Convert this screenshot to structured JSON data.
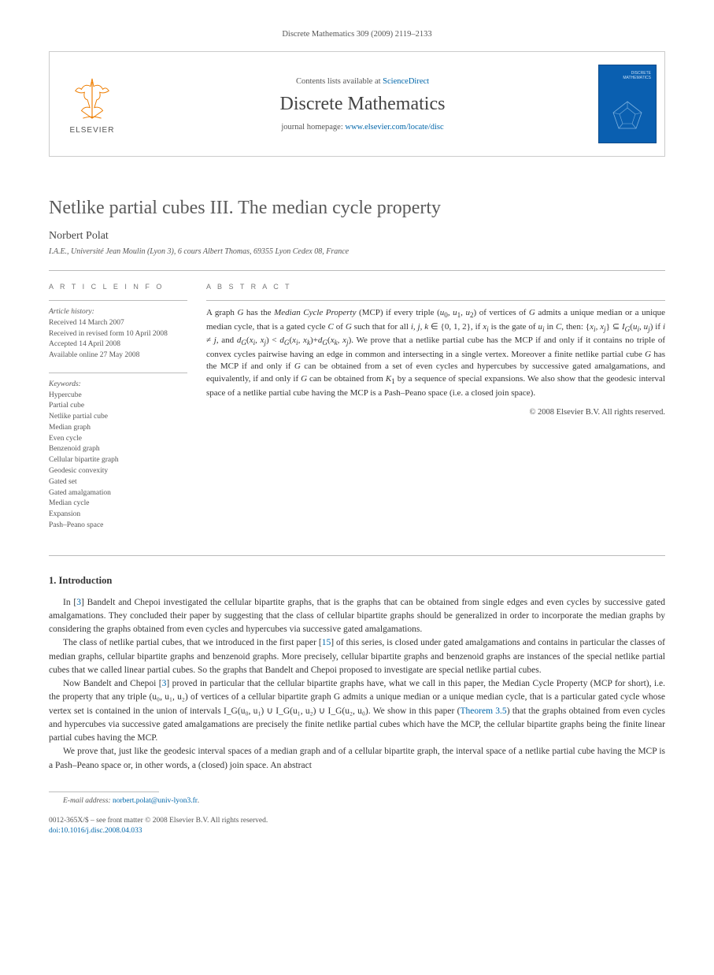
{
  "header_line": "Discrete Mathematics 309 (2009) 2119–2133",
  "banner": {
    "publisher": "ELSEVIER",
    "contents_prefix": "Contents lists available at ",
    "contents_link": "ScienceDirect",
    "journal": "Discrete Mathematics",
    "homepage_prefix": "journal homepage: ",
    "homepage_link": "www.elsevier.com/locate/disc",
    "cover_title_1": "DISCRETE",
    "cover_title_2": "MATHEMATICS",
    "cover_bg": "#0a5fb0",
    "cover_line": "#7fb3e0"
  },
  "title": "Netlike partial cubes III. The median cycle property",
  "author": "Norbert Polat",
  "affiliation": "I.A.E., Université Jean Moulin (Lyon 3), 6 cours Albert Thomas, 69355 Lyon Cedex 08, France",
  "info": {
    "heading": "A R T I C L E   I N F O",
    "history_label": "Article history:",
    "history": [
      "Received 14 March 2007",
      "Received in revised form 10 April 2008",
      "Accepted 14 April 2008",
      "Available online 27 May 2008"
    ],
    "keywords_label": "Keywords:",
    "keywords": [
      "Hypercube",
      "Partial cube",
      "Netlike partial cube",
      "Median graph",
      "Even cycle",
      "Benzenoid graph",
      "Cellular bipartite graph",
      "Geodesic convexity",
      "Gated set",
      "Gated amalgamation",
      "Median cycle",
      "Expansion",
      "Pash–Peano space"
    ]
  },
  "abstract": {
    "heading": "A B S T R A C T",
    "text": "A graph <i>G</i> has the <i>Median Cycle Property</i> (MCP) if every triple (<i>u</i><sub>0</sub>, <i>u</i><sub>1</sub>, <i>u</i><sub>2</sub>) of vertices of <i>G</i> admits a unique median or a unique median cycle, that is a gated cycle <i>C</i> of <i>G</i> such that for all <i>i, j, k</i> ∈ {0, 1, 2}, if <i>x<sub>i</sub></i> is the gate of <i>u<sub>i</sub></i> in <i>C</i>, then: {<i>x<sub>i</sub>, x<sub>j</sub></i>} ⊆ <i>I<sub>G</sub></i>(<i>u<sub>i</sub>, u<sub>j</sub></i>) if <i>i</i> ≠ <i>j</i>, and <i>d<sub>G</sub></i>(<i>x<sub>i</sub>, x<sub>j</sub></i>) &lt; <i>d<sub>G</sub></i>(<i>x<sub>i</sub>, x<sub>k</sub></i>)+<i>d<sub>G</sub></i>(<i>x<sub>k</sub>, x<sub>j</sub></i>). We prove that a netlike partial cube has the MCP if and only if it contains no triple of convex cycles pairwise having an edge in common and intersecting in a single vertex. Moreover a finite netlike partial cube <i>G</i> has the MCP if and only if <i>G</i> can be obtained from a set of even cycles and hypercubes by successive gated amalgamations, and equivalently, if and only if <i>G</i> can be obtained from <i>K</i><sub>1</sub> by a sequence of special expansions. We also show that the geodesic interval space of a netlike partial cube having the MCP is a Pash–Peano space (i.e. a closed join space).",
    "copyright": "© 2008 Elsevier B.V. All rights reserved."
  },
  "section1": {
    "heading": "1. Introduction",
    "p1_a": "In [",
    "p1_ref": "3",
    "p1_b": "] Bandelt and Chepoi investigated the cellular bipartite graphs, that is the graphs that can be obtained from single edges and even cycles by successive gated amalgamations. They concluded their paper by suggesting that the class of cellular bipartite graphs should be generalized in order to incorporate the median graphs by considering the graphs obtained from even cycles and hypercubes via successive gated amalgamations.",
    "p2_a": "The class of netlike partial cubes, that we introduced in the first paper [",
    "p2_ref": "15",
    "p2_b": "] of this series, is closed under gated amalgamations and contains in particular the classes of median graphs, cellular bipartite graphs and benzenoid graphs. More precisely, cellular bipartite graphs and benzenoid graphs are instances of the special netlike partial cubes that we called linear partial cubes. So the graphs that Bandelt and Chepoi proposed to investigate are special netlike partial cubes.",
    "p3_a": "Now Bandelt and Chepoi [",
    "p3_ref": "3",
    "p3_b": "] proved in particular that the cellular bipartite graphs have, what we call in this paper, the Median Cycle Property (MCP for short), i.e. the property that any triple (u₀, u₁, u₂) of vertices of a cellular bipartite graph G admits a unique median or a unique median cycle, that is a particular gated cycle whose vertex set is contained in the union of intervals I_G(u₀, u₁) ∪ I_G(u₁, u₂) ∪ I_G(u₂, u₀). We show in this paper (",
    "p3_thm": "Theorem 3.5",
    "p3_c": ") that the graphs obtained from even cycles and hypercubes via successive gated amalgamations are precisely the finite netlike partial cubes which have the MCP, the cellular bipartite graphs being the finite linear partial cubes having the MCP.",
    "p4": "We prove that, just like the geodesic interval spaces of a median graph and of a cellular bipartite graph, the interval space of a netlike partial cube having the MCP is a Pash–Peano space or, in other words, a (closed) join space. An abstract"
  },
  "footer": {
    "email_label": "E-mail address: ",
    "email": "norbert.polat@univ-lyon3.fr",
    "line1": "0012-365X/$ – see front matter © 2008 Elsevier B.V. All rights reserved.",
    "doi_label": "doi:",
    "doi": "10.1016/j.disc.2008.04.033"
  },
  "colors": {
    "link": "#0066aa",
    "text": "#333333",
    "muted": "#555555",
    "rule": "#bbbbbb",
    "elsevier_orange": "#ee7d00"
  }
}
